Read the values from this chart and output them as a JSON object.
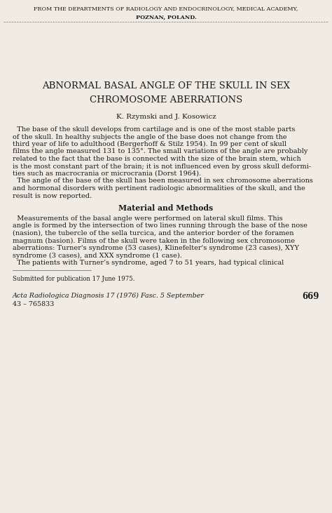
{
  "bg_color": "#f0ece4",
  "text_color": "#1a1a1a",
  "header_line1": "FROM THE DEPARTMENTS OF RADIOLOGY AND ENDOCRINOLOGY, MEDICAL ACADEMY,",
  "header_line2": "POZNAN, POLAND.",
  "title_line1": "ABNORMAL BASAL ANGLE OF THE SKULL IN SEX",
  "title_line2": "CHROMOSOME ABERRATIONS",
  "authors": "K. RɃymski and J. Kosowicz",
  "authors_display": "K. Rzymski and J. Kosowicz",
  "body_para1": "The base of the skull develops from cartilage and is one of the most stable parts of the skull. In healthy subjects the angle of the base does not change from the third year of life to adulthood (Bergerhoff & Stilz 1954). In 99 per cent of skull films the angle measured 131 to 135°. The small variations of the angle are probably related to the fact that the base is connected with the size of the brain stem, which is the most constant part of the brain; it is not influenced even by gross skull deformities such as macrocrania or microcrania (Dorst 1964).",
  "body_para2": "The angle of the base of the skull has been measured in sex chromosome aberrations and hormonal disorders with pertinent radiologic abnormalities of the skull, and the result is now reported.",
  "section_header": "Material and Methods",
  "section_para1": "Measurements of the basal angle were performed on lateral skull films. This angle is formed by the intersection of two lines running through the base of the nose (nasion), the tubercle of the sella turcica, and the anterior border of the foramen magnum (basion). Films of the skull were taken in the following sex chromosome aberrations: Turner's syndrome (53 cases), Klinefelter's syndrome (23 cases), XYY syndrome (3 cases), and XXX syndrome (1 case).",
  "section_para2": "The patients with Turner’s syndrome, aged 7 to 51 years, had typical clinical",
  "footnote": "Submitted for publication 17 June 1975.",
  "journal": "Acta Radiologica Diagnosis 17 (1976) Fasc. 5 September",
  "page_num": "669",
  "catalog": "43 – 765833",
  "body_fontsize": 7.0,
  "header_fontsize": 5.8,
  "title_fontsize": 9.5,
  "author_fontsize": 7.5,
  "section_fontsize": 7.8,
  "footnote_fontsize": 6.2,
  "journal_fontsize": 6.8
}
